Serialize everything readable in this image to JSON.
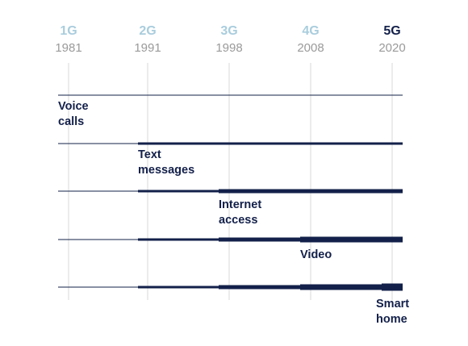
{
  "generations": [
    {
      "name": "1G",
      "year": "1981",
      "color": "#a9cddd"
    },
    {
      "name": "2G",
      "year": "1991",
      "color": "#a9cddd"
    },
    {
      "name": "3G",
      "year": "1998",
      "color": "#a9cddd"
    },
    {
      "name": "4G",
      "year": "2008",
      "color": "#a9cddd"
    },
    {
      "name": "5G",
      "year": "2020",
      "color": "#13204a"
    }
  ],
  "milestones": [
    {
      "label": "Voice\ncalls",
      "introduced_by": "1G"
    },
    {
      "label": "Text\nmessages",
      "introduced_by": "2G"
    },
    {
      "label": "Internet\naccess",
      "introduced_by": "3G"
    },
    {
      "label": "Video",
      "introduced_by": "4G"
    },
    {
      "label": "Smart\nhome",
      "introduced_by": "5G"
    }
  ],
  "colors": {
    "line": "#13204a",
    "gridline": "#d9d9d9",
    "year_text": "#9a9a9a"
  }
}
